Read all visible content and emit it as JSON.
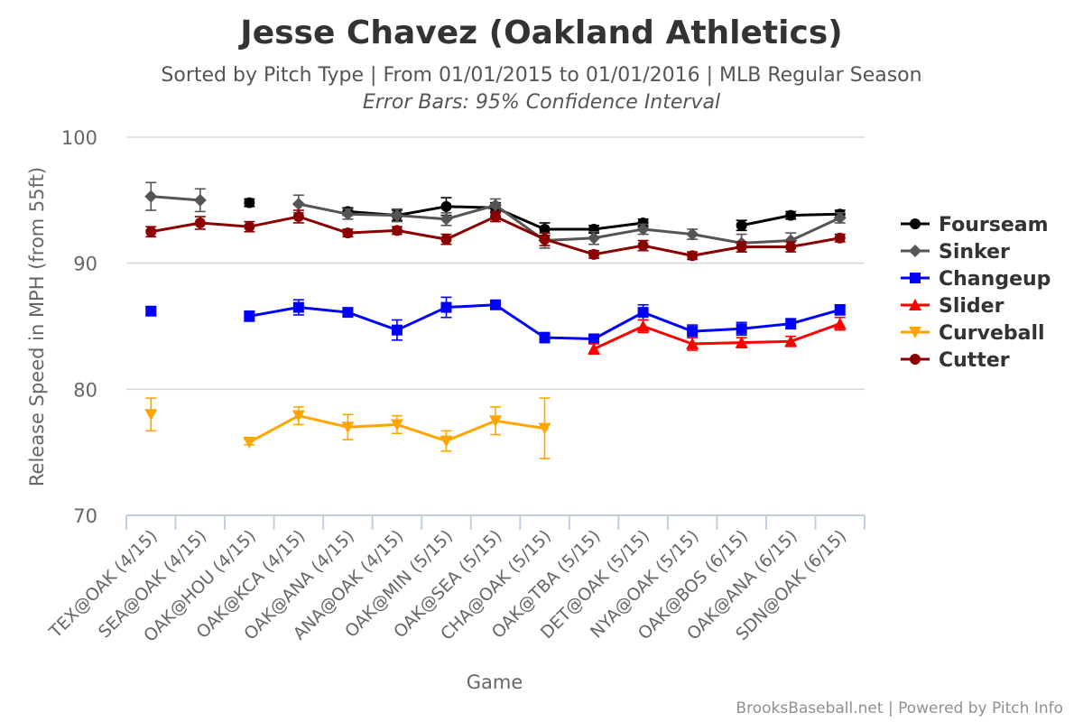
{
  "chart_data": {
    "type": "line",
    "title": "Jesse Chavez (Oakland Athletics)",
    "subtitle": "Sorted by Pitch Type | From 01/01/2015 to 01/01/2016 | MLB Regular Season",
    "subtitle2": "Error Bars: 95% Confidence Interval",
    "xlabel": "Game",
    "ylabel": "Release Speed in MPH (from 55ft)",
    "ylim": [
      70,
      100
    ],
    "yticks": [
      70,
      80,
      90,
      100
    ],
    "grid": true,
    "legend_position": "right",
    "credits": "BrooksBaseball.net | Powered by Pitch Info",
    "categories": [
      "TEX@OAK (4/15)",
      "SEA@OAK (4/15)",
      "OAK@HOU (4/15)",
      "OAK@KCA (4/15)",
      "OAK@ANA (4/15)",
      "ANA@OAK (4/15)",
      "OAK@MIN (5/15)",
      "OAK@SEA (5/15)",
      "CHA@OAK (5/15)",
      "OAK@TBA (5/15)",
      "DET@OAK (5/15)",
      "NYA@OAK (5/15)",
      "OAK@BOS (6/15)",
      "OAK@ANA (6/15)",
      "SDN@OAK (6/15)"
    ],
    "series": [
      {
        "name": "Fourseam",
        "color": "#000000",
        "marker": "circle",
        "values": [
          null,
          null,
          94.8,
          null,
          94.1,
          93.8,
          94.5,
          94.4,
          92.7,
          92.7,
          93.2,
          null,
          93.0,
          93.8,
          93.9
        ],
        "err": [
          null,
          null,
          0.3,
          null,
          0.3,
          0.4,
          0.7,
          0.4,
          0.5,
          0.3,
          0.3,
          null,
          0.4,
          0.3,
          0.3
        ]
      },
      {
        "name": "Sinker",
        "color": "#555555",
        "marker": "diamond",
        "values": [
          95.3,
          95.0,
          null,
          94.7,
          93.9,
          93.8,
          93.5,
          94.6,
          91.8,
          92.0,
          92.7,
          92.3,
          91.6,
          91.8,
          93.6
        ],
        "err": [
          1.1,
          0.9,
          null,
          0.7,
          0.4,
          0.5,
          0.5,
          0.5,
          0.6,
          0.5,
          0.4,
          0.4,
          0.7,
          0.6,
          0.4
        ]
      },
      {
        "name": "Changeup",
        "color": "#0000ff",
        "marker": "square",
        "values": [
          86.2,
          null,
          85.8,
          86.5,
          86.1,
          84.7,
          86.5,
          86.7,
          84.1,
          84.0,
          86.1,
          84.6,
          84.8,
          85.2,
          86.3
        ],
        "err": [
          0.3,
          null,
          0.4,
          0.6,
          0.3,
          0.8,
          0.8,
          0.3,
          0.4,
          0.3,
          0.6,
          0.5,
          0.5,
          0.4,
          0.4
        ]
      },
      {
        "name": "Slider",
        "color": "#ff0000",
        "marker": "triangle",
        "values": [
          null,
          null,
          null,
          null,
          null,
          null,
          null,
          null,
          null,
          83.2,
          85.0,
          83.6,
          83.7,
          83.8,
          85.2
        ],
        "err": [
          null,
          null,
          null,
          null,
          null,
          null,
          null,
          null,
          null,
          0.4,
          0.5,
          0.5,
          0.4,
          0.4,
          0.5
        ]
      },
      {
        "name": "Curveball",
        "color": "#ffa500",
        "marker": "triangle-down",
        "values": [
          78.0,
          null,
          75.8,
          77.9,
          77.0,
          77.2,
          75.9,
          77.5,
          76.9,
          null,
          null,
          null,
          null,
          null,
          null
        ],
        "err": [
          1.3,
          null,
          0.2,
          0.7,
          1.0,
          0.7,
          0.8,
          1.1,
          2.4,
          null,
          null,
          null,
          null,
          null,
          null
        ]
      },
      {
        "name": "Cutter",
        "color": "#8b0000",
        "marker": "circle",
        "values": [
          92.5,
          93.2,
          92.9,
          93.7,
          92.4,
          92.6,
          91.9,
          93.7,
          91.9,
          90.7,
          91.4,
          90.6,
          91.3,
          91.3,
          92.0
        ],
        "err": [
          0.4,
          0.5,
          0.4,
          0.5,
          0.3,
          0.3,
          0.4,
          0.4,
          0.5,
          0.3,
          0.4,
          0.3,
          0.4,
          0.4,
          0.3
        ]
      }
    ]
  }
}
